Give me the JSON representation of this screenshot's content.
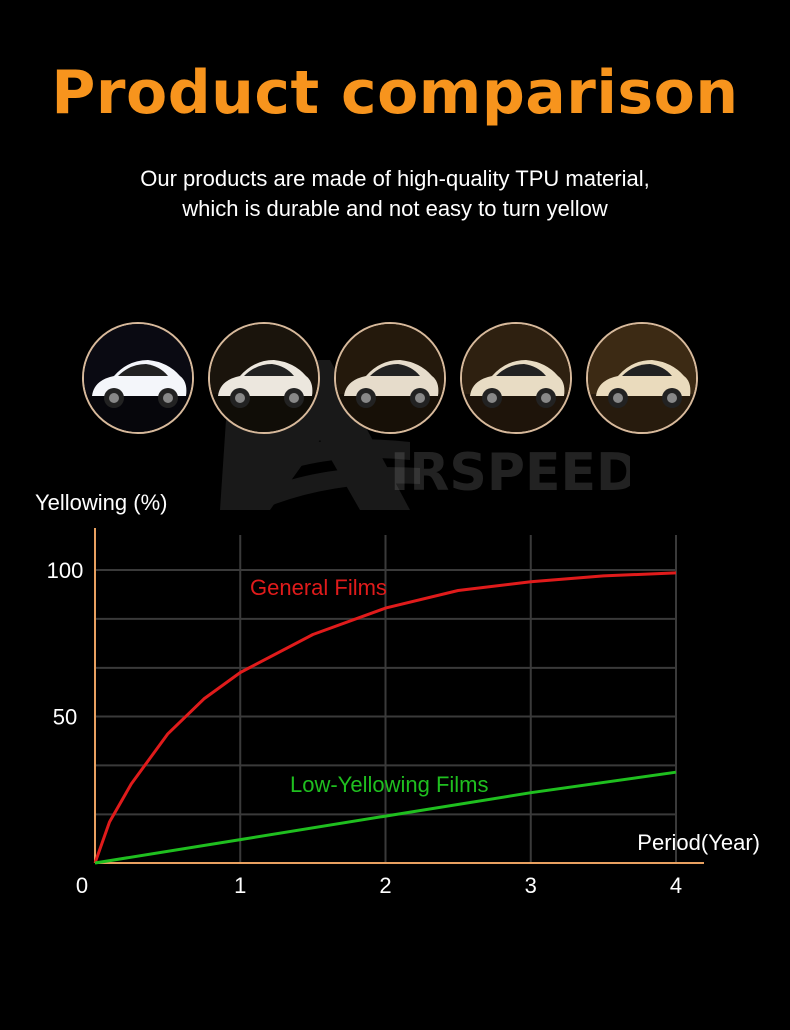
{
  "header": {
    "title": "Product comparison",
    "subtitle_lines": [
      "Our products are made of high-quality TPU material,",
      "which is durable and not easy to turn yellow"
    ]
  },
  "watermark_text": "IRSPEED",
  "car_photos": [
    {
      "name": "car-photo-stage-1",
      "bg": "#0a0a12",
      "car": "#f4f6fa"
    },
    {
      "name": "car-photo-stage-2",
      "bg": "#1a140c",
      "car": "#ece7de"
    },
    {
      "name": "car-photo-stage-3",
      "bg": "#24190c",
      "car": "#e6dccb"
    },
    {
      "name": "car-photo-stage-4",
      "bg": "#2e2010",
      "car": "#e8dcc4"
    },
    {
      "name": "car-photo-stage-5",
      "bg": "#3c2a14",
      "car": "#eadbbd"
    }
  ],
  "chart_data": {
    "type": "line",
    "ylabel": "Yellowing (%)",
    "xlabel": "Period(Year)",
    "xlim": [
      0,
      4
    ],
    "ylim": [
      0,
      100
    ],
    "x_ticks": [
      0,
      1,
      2,
      3,
      4
    ],
    "y_ticks": [
      50,
      100
    ],
    "grid": true,
    "series": [
      {
        "name": "General Films",
        "color": "#e01b1b",
        "x": [
          0,
          0.1,
          0.25,
          0.5,
          0.75,
          1,
          1.5,
          2,
          2.5,
          3,
          3.5,
          4
        ],
        "y": [
          0,
          14,
          27,
          44,
          56,
          65,
          78,
          87,
          93,
          96,
          98,
          99
        ]
      },
      {
        "name": "Low-Yellowing Films",
        "color": "#1fbf1f",
        "x": [
          0,
          1,
          2,
          3,
          4
        ],
        "y": [
          0,
          8,
          16,
          24,
          31
        ]
      }
    ]
  },
  "colors": {
    "accent": "#f7941d",
    "axis": "#e8a060",
    "grid": "#3a3a3a"
  }
}
